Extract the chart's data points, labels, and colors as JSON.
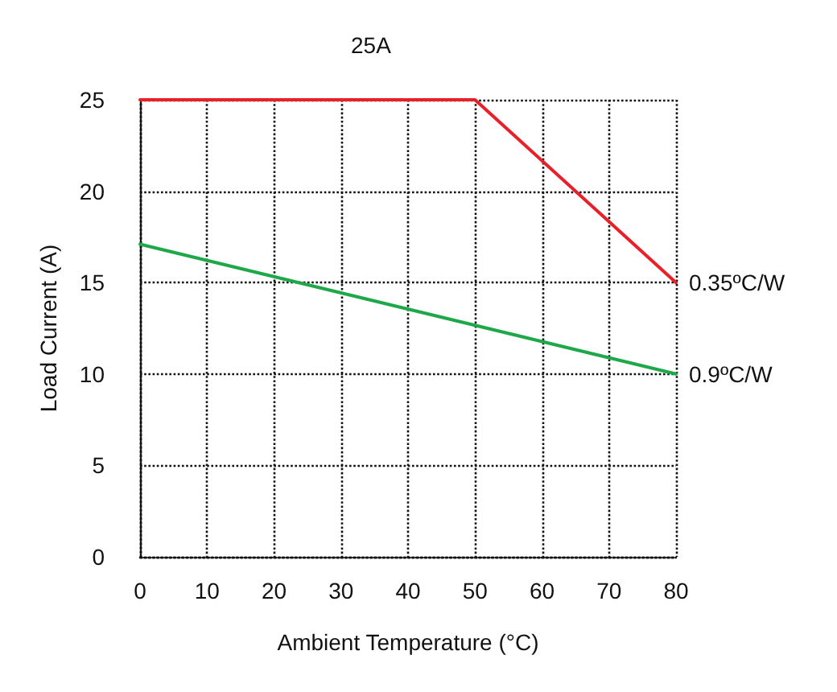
{
  "chart_data": {
    "type": "line",
    "title": "25A",
    "xlabel": "Ambient Temperature (°C)",
    "ylabel": "Load Current (A)",
    "xlim": [
      0,
      80
    ],
    "xticks": [
      0,
      10,
      20,
      30,
      40,
      50,
      60,
      70,
      80
    ],
    "ylim": [
      0,
      25
    ],
    "yticks": [
      0,
      5,
      10,
      15,
      20,
      25
    ],
    "grid": true,
    "legend": false,
    "marker": "none",
    "line_style": "solid",
    "series": [
      {
        "name": "0.35ºC/W",
        "color": "#e8202a",
        "x": [
          0,
          50,
          80
        ],
        "values": [
          25,
          25,
          15
        ]
      },
      {
        "name": "0.9ºC/W",
        "color": "#1fa84a",
        "x": [
          0,
          80
        ],
        "values": [
          17.1,
          10
        ]
      }
    ]
  }
}
